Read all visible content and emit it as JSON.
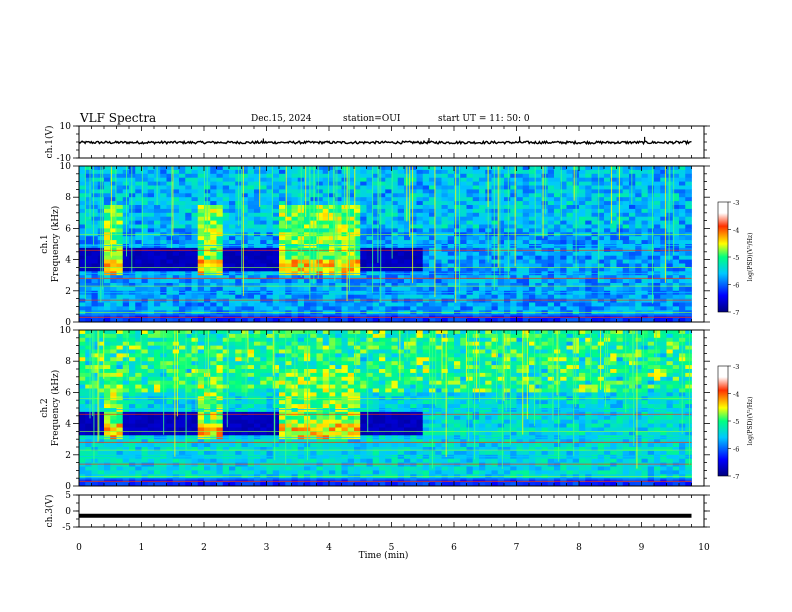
{
  "header": {
    "title": "VLF Spectra",
    "date": "Dec.15, 2024",
    "station": "station=OUI",
    "start_ut": "start  UT =   11: 50: 0"
  },
  "chart_data": [
    {
      "type": "line",
      "name": "ch1-waveform",
      "ylabel": "ch.1(V)",
      "ylim": [
        -10,
        10
      ],
      "yticks": [
        10,
        -10
      ],
      "x_range_min": [
        0,
        9.8
      ],
      "baseline": -0.3,
      "noise_amplitude": 0.8,
      "spikes": [
        {
          "x": 2.95,
          "y": 2.2
        },
        {
          "x": 5.6,
          "y": 2.5
        },
        {
          "x": 7.05,
          "y": 3.5
        },
        {
          "x": 9.05,
          "y": 3.2
        }
      ]
    },
    {
      "type": "heatmap",
      "name": "ch1-spectrogram",
      "ylabel": "ch.1\nFrequency (kHz)",
      "ylim": [
        0,
        10
      ],
      "yticks": [
        0,
        2,
        4,
        6,
        8,
        10
      ],
      "x_range_min": [
        0,
        9.8
      ],
      "colorbar": {
        "label": "log(PSD)(V²/Hz)",
        "range": [
          -7,
          -3
        ],
        "ticks": [
          -3,
          -4,
          -5,
          -6,
          -7
        ]
      },
      "bursts_min": [
        [
          0.45,
          0.7
        ],
        [
          1.95,
          2.25
        ],
        [
          3.25,
          4.5
        ]
      ]
    },
    {
      "type": "heatmap",
      "name": "ch2-spectrogram",
      "ylabel": "ch.2\nFrequency (kHz)",
      "ylim": [
        0,
        10
      ],
      "yticks": [
        0,
        2,
        4,
        6,
        8,
        10
      ],
      "x_range_min": [
        0,
        9.8
      ],
      "colorbar": {
        "label": "log(PSD)(V²/Hz)",
        "range": [
          -7,
          -3
        ],
        "ticks": [
          -3,
          -4,
          -5,
          -6,
          -7
        ]
      },
      "bursts_min": [
        [
          0.45,
          0.7
        ],
        [
          1.95,
          2.25
        ],
        [
          3.25,
          4.5
        ]
      ]
    },
    {
      "type": "line",
      "name": "ch3-waveform",
      "ylabel": "ch.3(V)",
      "ylim": [
        -5,
        5
      ],
      "yticks": [
        5,
        0,
        -5
      ],
      "x_range_min": [
        0,
        9.8
      ],
      "value": -1.5
    }
  ],
  "x_axis": {
    "label": "Time (min)",
    "range": [
      0,
      10
    ],
    "ticks": [
      0,
      1,
      2,
      3,
      4,
      5,
      6,
      7,
      8,
      9,
      10
    ]
  }
}
